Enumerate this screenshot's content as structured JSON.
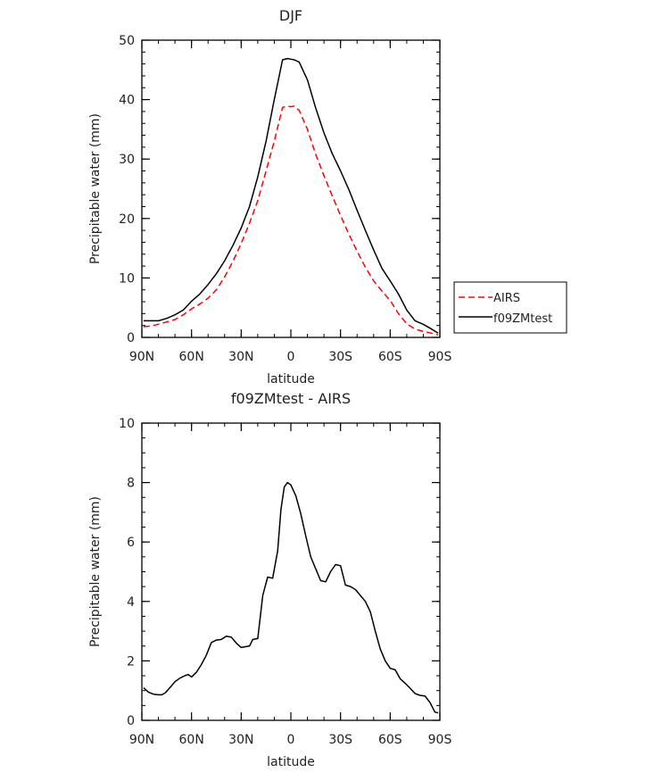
{
  "chart_data": [
    {
      "type": "line",
      "title": "DJF",
      "xlabel": "latitude",
      "ylabel": "Precipitable water (mm)",
      "xlim": [
        90,
        -90
      ],
      "ylim": [
        0,
        50
      ],
      "xticks": [
        90,
        60,
        30,
        0,
        -30,
        -60,
        -90
      ],
      "xtick_labels": [
        "90N",
        "60N",
        "30N",
        "0",
        "30S",
        "60S",
        "90S"
      ],
      "yticks": [
        0,
        10,
        20,
        30,
        40,
        50
      ],
      "ytick_labels": [
        "0",
        "10",
        "20",
        "30",
        "40",
        "50"
      ],
      "series": [
        {
          "name": "AIRS",
          "color": "#ff0000",
          "dash": "dashed",
          "x": [
            89,
            85,
            80,
            75,
            70,
            65,
            60,
            55,
            50,
            45,
            40,
            35,
            30,
            25,
            20,
            15,
            10,
            5,
            2,
            0,
            -2,
            -5,
            -10,
            -15,
            -20,
            -25,
            -30,
            -35,
            -40,
            -45,
            -50,
            -55,
            -60,
            -65,
            -70,
            -75,
            -80,
            -85,
            -89
          ],
          "y": [
            1.8,
            1.9,
            2.2,
            2.6,
            3.0,
            3.8,
            4.8,
            5.6,
            6.6,
            8.0,
            10.2,
            12.8,
            15.8,
            19.2,
            23.0,
            28.0,
            33.0,
            38.7,
            38.9,
            38.8,
            38.9,
            38.2,
            35.0,
            30.8,
            27.2,
            23.8,
            20.5,
            17.4,
            14.5,
            11.8,
            9.5,
            7.8,
            6.2,
            4.0,
            2.3,
            1.4,
            1.0,
            0.7,
            0.4
          ]
        },
        {
          "name": "f09ZMtest",
          "color": "#000000",
          "dash": "solid",
          "x": [
            89,
            85,
            80,
            75,
            70,
            65,
            60,
            55,
            50,
            45,
            40,
            35,
            30,
            25,
            20,
            15,
            10,
            5,
            2,
            0,
            -2,
            -5,
            -10,
            -15,
            -20,
            -25,
            -30,
            -35,
            -40,
            -45,
            -50,
            -55,
            -60,
            -65,
            -70,
            -75,
            -80,
            -85,
            -89
          ],
          "y": [
            2.8,
            2.8,
            2.8,
            3.2,
            3.8,
            4.6,
            6.1,
            7.3,
            8.9,
            10.7,
            12.9,
            15.5,
            18.4,
            22.0,
            27.0,
            33.0,
            40.0,
            46.7,
            46.9,
            46.8,
            46.7,
            46.3,
            43.3,
            38.6,
            34.4,
            30.9,
            28.0,
            24.9,
            21.4,
            18.0,
            14.7,
            11.6,
            9.5,
            7.3,
            4.6,
            2.8,
            2.2,
            1.4,
            0.7
          ]
        }
      ],
      "legend": {
        "position": "right",
        "entries": [
          "AIRS",
          "f09ZMtest"
        ]
      }
    },
    {
      "type": "line",
      "title": "f09ZMtest - AIRS",
      "xlabel": "latitude",
      "ylabel": "Precipitable water (mm)",
      "xlim": [
        90,
        -90
      ],
      "ylim": [
        0,
        10
      ],
      "xticks": [
        90,
        60,
        30,
        0,
        -30,
        -60,
        -90
      ],
      "xtick_labels": [
        "90N",
        "60N",
        "30N",
        "0",
        "30S",
        "60S",
        "90S"
      ],
      "yticks": [
        0,
        2,
        4,
        6,
        8,
        10
      ],
      "ytick_labels": [
        "0",
        "2",
        "4",
        "6",
        "8",
        "10"
      ],
      "series": [
        {
          "name": "f09ZMtest - AIRS",
          "color": "#000000",
          "dash": "solid",
          "x": [
            89,
            86,
            83,
            80,
            78,
            76,
            73,
            70,
            67,
            64,
            62,
            60,
            57,
            54,
            51,
            48,
            45,
            42,
            39,
            36,
            33,
            30,
            27,
            25,
            23,
            20,
            17,
            14,
            11,
            8,
            6,
            4,
            2,
            0,
            -3,
            -6,
            -9,
            -12,
            -15,
            -18,
            -21,
            -24,
            -27,
            -30,
            -33,
            -36,
            -39,
            -42,
            -45,
            -48,
            -51,
            -54,
            -57,
            -60,
            -63,
            -66,
            -69,
            -72,
            -75,
            -78,
            -81,
            -84,
            -87,
            -89
          ],
          "y": [
            1.1,
            0.95,
            0.88,
            0.86,
            0.86,
            0.92,
            1.1,
            1.3,
            1.42,
            1.5,
            1.54,
            1.46,
            1.62,
            1.88,
            2.2,
            2.62,
            2.7,
            2.72,
            2.83,
            2.8,
            2.6,
            2.45,
            2.48,
            2.5,
            2.72,
            2.75,
            4.2,
            4.82,
            4.78,
            5.7,
            7.1,
            7.85,
            8.0,
            7.92,
            7.55,
            6.95,
            6.2,
            5.5,
            5.1,
            4.7,
            4.66,
            5.0,
            5.24,
            5.2,
            4.55,
            4.5,
            4.4,
            4.2,
            4.0,
            3.65,
            3.0,
            2.4,
            2.0,
            1.75,
            1.7,
            1.4,
            1.25,
            1.08,
            0.9,
            0.84,
            0.82,
            0.6,
            0.28,
            0.25
          ]
        }
      ]
    }
  ]
}
